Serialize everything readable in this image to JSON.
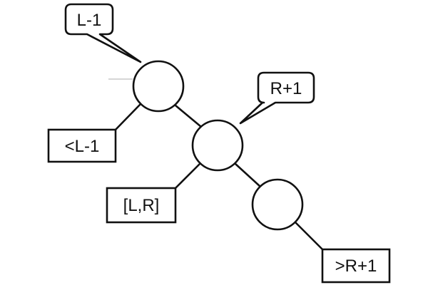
{
  "nodes": {
    "top": "",
    "middle": "",
    "bottom": ""
  },
  "callouts": {
    "left_bound": "L-1",
    "right_bound": "R+1"
  },
  "leaves": {
    "less_than": "<L-1",
    "range": "[L,R]",
    "greater_than": ">R+1"
  },
  "colors": {
    "stroke": "#111111",
    "fill": "#ffffff",
    "background": "#ffffff"
  }
}
